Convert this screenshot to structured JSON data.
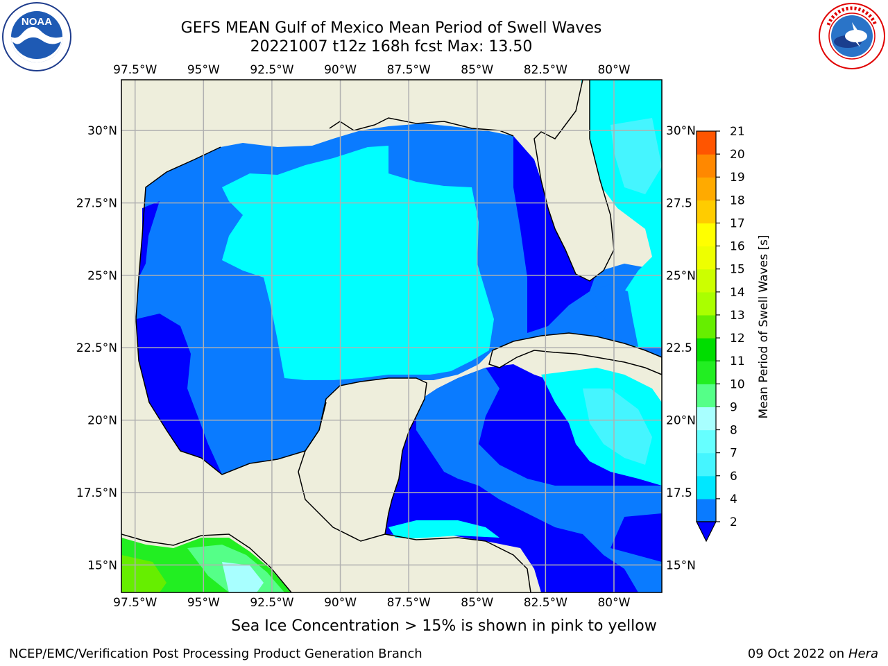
{
  "header": {
    "title_line1": "GEFS MEAN Gulf of Mexico Mean Period of Swell Waves",
    "title_line2": "20221007 t12z 168h fcst   Max: 13.50"
  },
  "logos": {
    "left": "NOAA",
    "left_ring_text": "NATIONAL OCEANIC AND ATMOSPHERIC ADMINISTRATION · U.S. DEPARTMENT OF COMMERCE",
    "right_ring_text": "NATIONAL WEATHER SERVICE"
  },
  "map": {
    "lon_labels": [
      "97.5°W",
      "95°W",
      "92.5°W",
      "90°W",
      "87.5°W",
      "85°W",
      "82.5°W",
      "80°W"
    ],
    "lat_labels_left": [
      "30°N",
      "27.5°N",
      "25°N",
      "22.5°N",
      "20°N",
      "17.5°N",
      "15°N"
    ],
    "lat_labels_right": [
      "30°N",
      "27.5",
      "25°N",
      "22.5",
      "20°N",
      "17.5",
      "15°N"
    ],
    "land_color": "#eeeedc",
    "grid_color": "#b0b0b0"
  },
  "colorbar": {
    "label": "Mean Period of Swell Waves [s]",
    "ticks": [
      "2",
      "4",
      "6",
      "7",
      "8",
      "9",
      "10",
      "11",
      "12",
      "13",
      "14",
      "15",
      "16",
      "17",
      "18",
      "19",
      "20",
      "21"
    ],
    "colors": [
      "#0a7bff",
      "#00e7ff",
      "#45f5ff",
      "#66ffff",
      "#a8ffff",
      "#55ff88",
      "#22ee22",
      "#00dd00",
      "#66ee00",
      "#aaff00",
      "#ccff00",
      "#eeff00",
      "#ffff00",
      "#ffcc00",
      "#ffaa00",
      "#ff8800",
      "#ff5500",
      "#ff2200",
      "#ff0000"
    ],
    "under_color": "#0000ff"
  },
  "footer": {
    "note": "Sea Ice Concentration > 15% is shown in pink to yellow",
    "credit": "NCEP/EMC/Verification Post Processing Product Generation Branch",
    "date": "09 Oct 2022 on ",
    "machine": "Hera"
  }
}
